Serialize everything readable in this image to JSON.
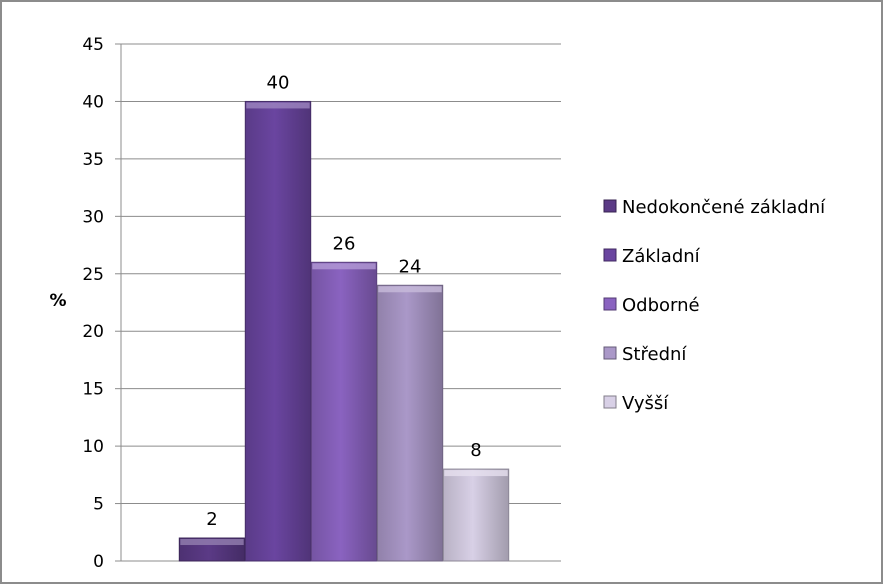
{
  "chart_data": {
    "type": "bar",
    "ylabel": "%",
    "ylim": [
      0,
      45
    ],
    "yticks": [
      0,
      5,
      10,
      15,
      20,
      25,
      30,
      35,
      40,
      45
    ],
    "grid": true,
    "legend_position": "right",
    "series": [
      {
        "name": "Nedokončené základní",
        "value": 2,
        "color": "#5B3A86"
      },
      {
        "name": "Základní",
        "value": 40,
        "color": "#6A45A0"
      },
      {
        "name": "Odborné",
        "value": 26,
        "color": "#8A63C0"
      },
      {
        "name": "Střední",
        "value": 24,
        "color": "#AA98C8"
      },
      {
        "name": "Vyšší",
        "value": 8,
        "color": "#D8D0E6"
      }
    ]
  }
}
